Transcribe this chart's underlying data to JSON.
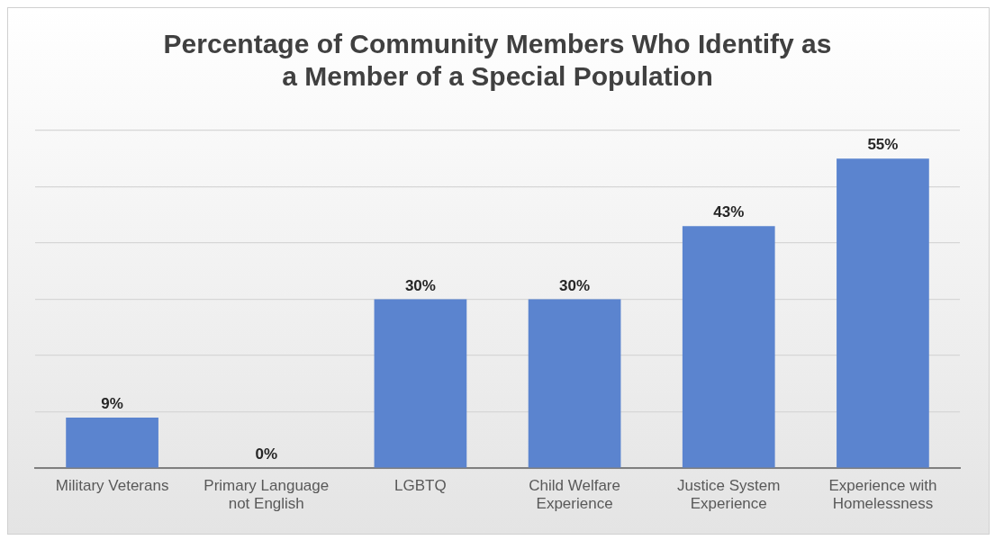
{
  "chart_data": {
    "type": "bar",
    "title": "Percentage of Community Members Who Identify as a Member of a Special Population",
    "categories": [
      "Military Veterans",
      "Primary Language not English",
      "LGBTQ",
      "Child Welfare Experience",
      "Justice System Experience",
      "Experience with Homelessness"
    ],
    "values": [
      9,
      0,
      30,
      30,
      43,
      55
    ],
    "value_labels": [
      "9%",
      "0%",
      "30%",
      "30%",
      "43%",
      "55%"
    ],
    "color": "#5b84cf",
    "ylim": [
      0,
      60
    ],
    "yticks": [
      {
        "value": 0,
        "label": null
      },
      {
        "value": 10,
        "label": null
      },
      {
        "value": 20,
        "label": null
      },
      {
        "value": 30,
        "label": null
      },
      {
        "value": 40,
        "label": null
      },
      {
        "value": 50,
        "label": null
      },
      {
        "value": 60,
        "label": null
      }
    ],
    "grid": "y",
    "tick_labels": "x"
  }
}
